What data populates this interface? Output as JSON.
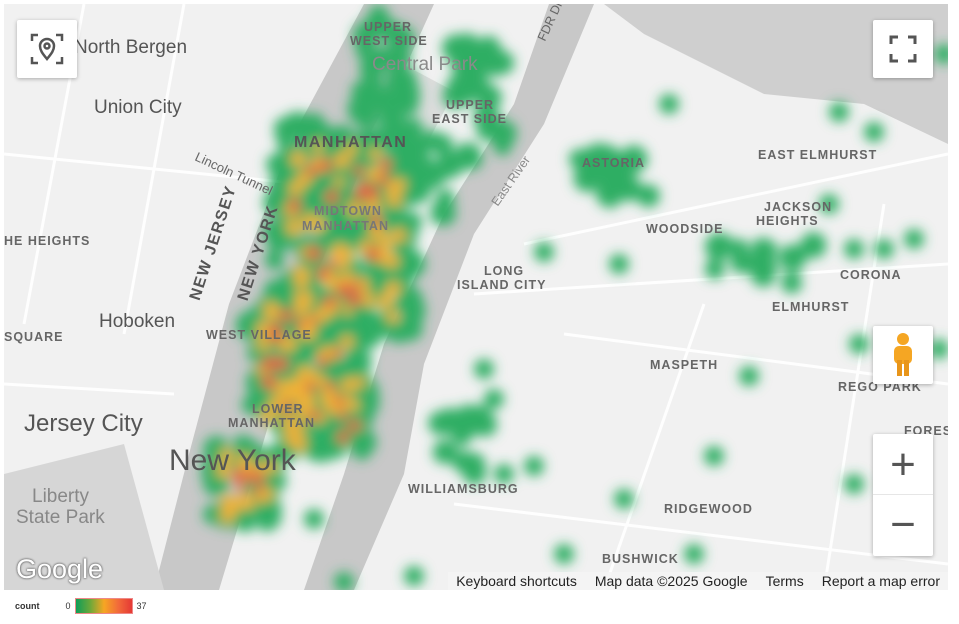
{
  "map": {
    "labels": {
      "north_bergen": "North Bergen",
      "union_city": "Union City",
      "heights": "HE HEIGHTS",
      "square": "SQUARE",
      "hoboken": "Hoboken",
      "jersey_city": "Jersey City",
      "liberty": "Liberty",
      "state_park": "State Park",
      "new_york": "New York",
      "new_jersey": "NEW JERSEY",
      "new_york_state": "NEW YORK",
      "lincoln_tunnel": "Lincoln Tunnel",
      "upper_west_1": "UPPER",
      "upper_west_2": "WEST SIDE",
      "central_park": "Central Park",
      "upper_east_1": "UPPER",
      "upper_east_2": "EAST SIDE",
      "manhattan": "MANHATTAN",
      "midtown_1": "MIDTOWN",
      "midtown_2": "MANHATTAN",
      "west_village": "WEST VILLAGE",
      "lower_1": "LOWER",
      "lower_2": "MANHATTAN",
      "fdr": "FDR Dr",
      "east_river": "East River",
      "long_island_1": "LONG",
      "long_island_2": "ISLAND CITY",
      "astoria": "ASTORIA",
      "east_elmhurst": "EAST ELMHURST",
      "jackson_1": "JACKSON",
      "jackson_2": "HEIGHTS",
      "woodside": "WOODSIDE",
      "corona": "CORONA",
      "elmhurst": "ELMHURST",
      "maspeth": "MASPETH",
      "rego_park": "REGO PARK",
      "forest": "FORES",
      "williamsburg": "WILLIAMSBURG",
      "ridgewood": "RIDGEWOOD",
      "bushwick": "BUSHWICK"
    },
    "attribution": {
      "keyboard": "Keyboard shortcuts",
      "map_data": "Map data ©2025 Google",
      "terms": "Terms",
      "report": "Report a map error"
    },
    "logo": "Google",
    "controls": {
      "locate": "location-icon",
      "fullscreen": "fullscreen-icon",
      "pegman": "street-view-pegman-icon",
      "zoom_in": "+",
      "zoom_out": "−"
    }
  },
  "legend": {
    "title": "count",
    "min": "0",
    "max": "37",
    "colors": [
      "#0f9d58",
      "#f6a623",
      "#e53935"
    ]
  }
}
